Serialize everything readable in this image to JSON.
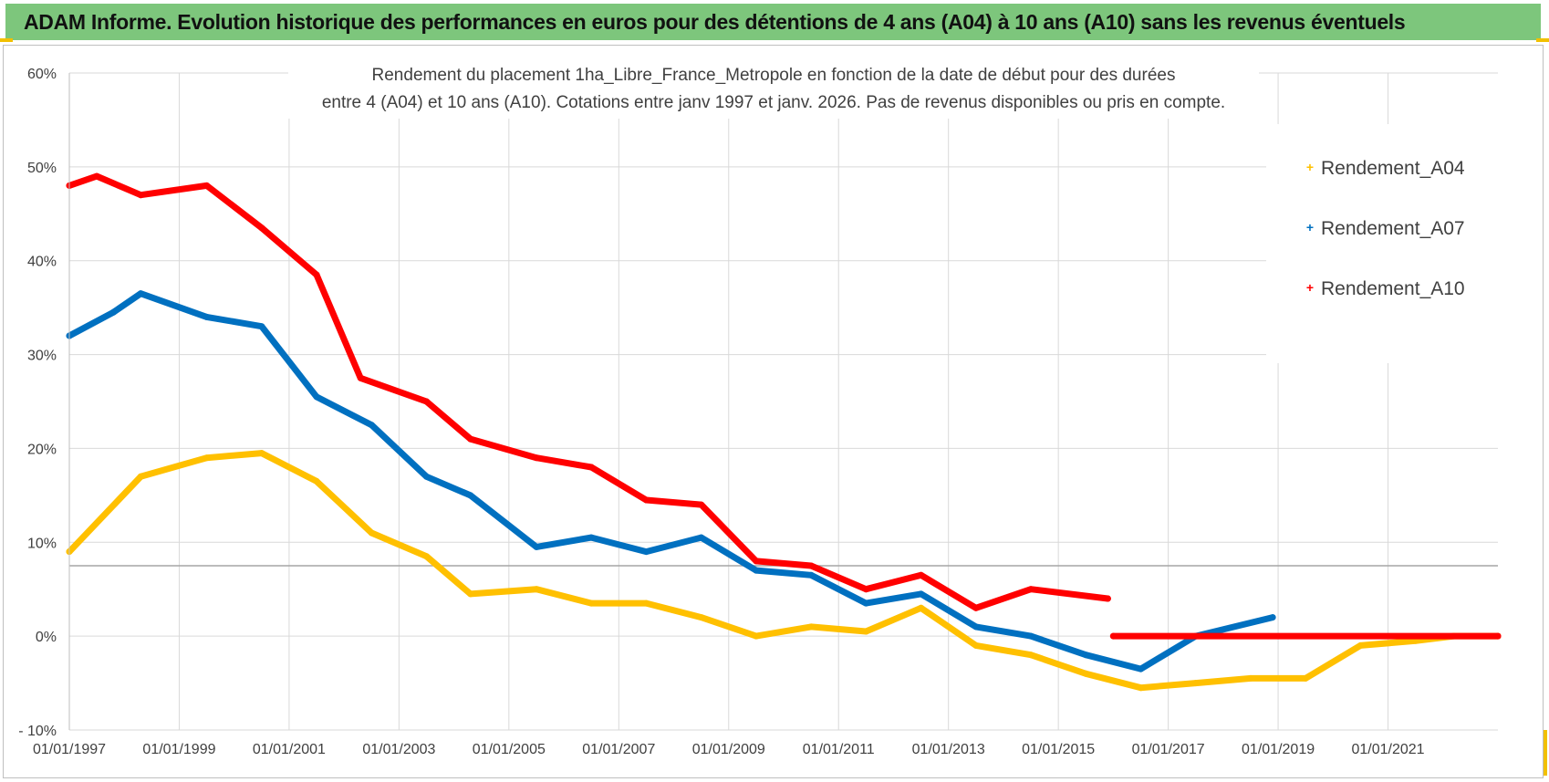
{
  "banner": {
    "title": "ADAM Informe. Evolution historique des performances en euros pour des détentions de 4 ans (A04) à 10 ans (A10) sans les revenus éventuels"
  },
  "colors": {
    "banner_bg": "#7dc67c",
    "A04": "#ffc000",
    "A07": "#0070c0",
    "A10": "#ff0000",
    "grid": "#d9d9d9"
  },
  "chart_data": {
    "type": "line",
    "title_line1": "Rendement du placement 1ha_Libre_France_Metropole en fonction de la date de début pour des durées",
    "title_line2": "entre 4 (A04) et 10 ans (A10).  Cotations entre janv 1997 et janv. 2026. Pas de revenus disponibles ou pris  en compte.",
    "xlabel": "",
    "ylabel": "",
    "xlim": [
      1997.0,
      2023.0
    ],
    "ylim": [
      -10,
      60
    ],
    "y_ticks": [
      -10,
      0,
      10,
      20,
      30,
      40,
      50,
      60
    ],
    "y_tick_labels": [
      "- 10%",
      "0%",
      "10%",
      "20%",
      "30%",
      "40%",
      "50%",
      "60%"
    ],
    "x_ticks": [
      1997,
      1999,
      2001,
      2003,
      2005,
      2007,
      2009,
      2011,
      2013,
      2015,
      2017,
      2019,
      2021
    ],
    "x_tick_labels": [
      "01/01/1997",
      "01/01/1999",
      "01/01/2001",
      "01/01/2003",
      "01/01/2005",
      "01/01/2007",
      "01/01/2009",
      "01/01/2011",
      "01/01/2013",
      "01/01/2015",
      "01/01/2017",
      "01/01/2019",
      "01/01/2021"
    ],
    "extra_hline": 7.5,
    "legend_position": "top-right",
    "series": [
      {
        "name": "Rendement_A04",
        "color": "#ffc000",
        "x": [
          1997.0,
          1998.3,
          1999.5,
          2000.5,
          2001.5,
          2002.5,
          2003.5,
          2004.3,
          2005.5,
          2006.5,
          2007.5,
          2008.5,
          2009.5,
          2010.5,
          2011.5,
          2012.5,
          2013.5,
          2014.5,
          2015.5,
          2016.5,
          2017.5,
          2018.5,
          2019.5,
          2020.5,
          2021.5,
          2022.2,
          2023.0
        ],
        "values": [
          9,
          17,
          19,
          19.5,
          16.5,
          11,
          8.5,
          4.5,
          5,
          3.5,
          3.5,
          2,
          0,
          1,
          0.5,
          3,
          -1,
          -2,
          -4,
          -5.5,
          -5,
          -4.5,
          -4.5,
          -1,
          -0.5,
          0,
          0
        ]
      },
      {
        "name": "Rendement_A07",
        "color": "#0070c0",
        "x": [
          1997.0,
          1997.8,
          1998.3,
          1999.5,
          2000.5,
          2001.5,
          2002.5,
          2003.5,
          2004.3,
          2005.5,
          2006.5,
          2007.5,
          2008.5,
          2009.5,
          2010.5,
          2011.5,
          2012.5,
          2013.5,
          2014.5,
          2015.5,
          2016.5,
          2017.5,
          2018.9
        ],
        "values": [
          32,
          34.5,
          36.5,
          34,
          33,
          25.5,
          22.5,
          17,
          15,
          9.5,
          10.5,
          9,
          10.5,
          7,
          6.5,
          3.5,
          4.5,
          1,
          0,
          -2,
          -3.5,
          0,
          2
        ]
      },
      {
        "name": "Rendement_A10",
        "color": "#ff0000",
        "x": [
          1997.0,
          1997.5,
          1998.3,
          1999.5,
          2000.5,
          2001.5,
          2002.3,
          2003.5,
          2004.3,
          2005.5,
          2006.5,
          2007.5,
          2008.5,
          2009.5,
          2010.5,
          2011.5,
          2012.5,
          2013.5,
          2014.5,
          2015.9
        ],
        "values": [
          48,
          49,
          47,
          48,
          43.5,
          38.5,
          27.5,
          25,
          21,
          19,
          18,
          14.5,
          14,
          8,
          7.5,
          5,
          6.5,
          3,
          5,
          4
        ]
      },
      {
        "name": "Rendement_A10",
        "color": "#ff0000",
        "legend": false,
        "x": [
          2016.0,
          2023.0
        ],
        "values": [
          0,
          0
        ]
      }
    ]
  }
}
